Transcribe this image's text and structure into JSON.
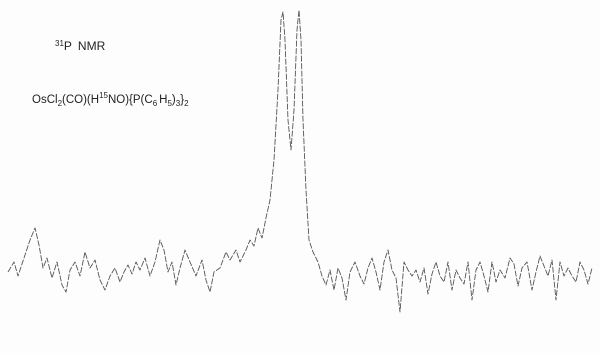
{
  "label": {
    "mass": "31",
    "nucleus": "P",
    "method": "NMR"
  },
  "formula": [
    "OsCl",
    "2",
    "(CO)(H",
    "15",
    "NO){P(C",
    "6",
    "H",
    "5",
    ")",
    "3",
    "}",
    "2"
  ]
}
